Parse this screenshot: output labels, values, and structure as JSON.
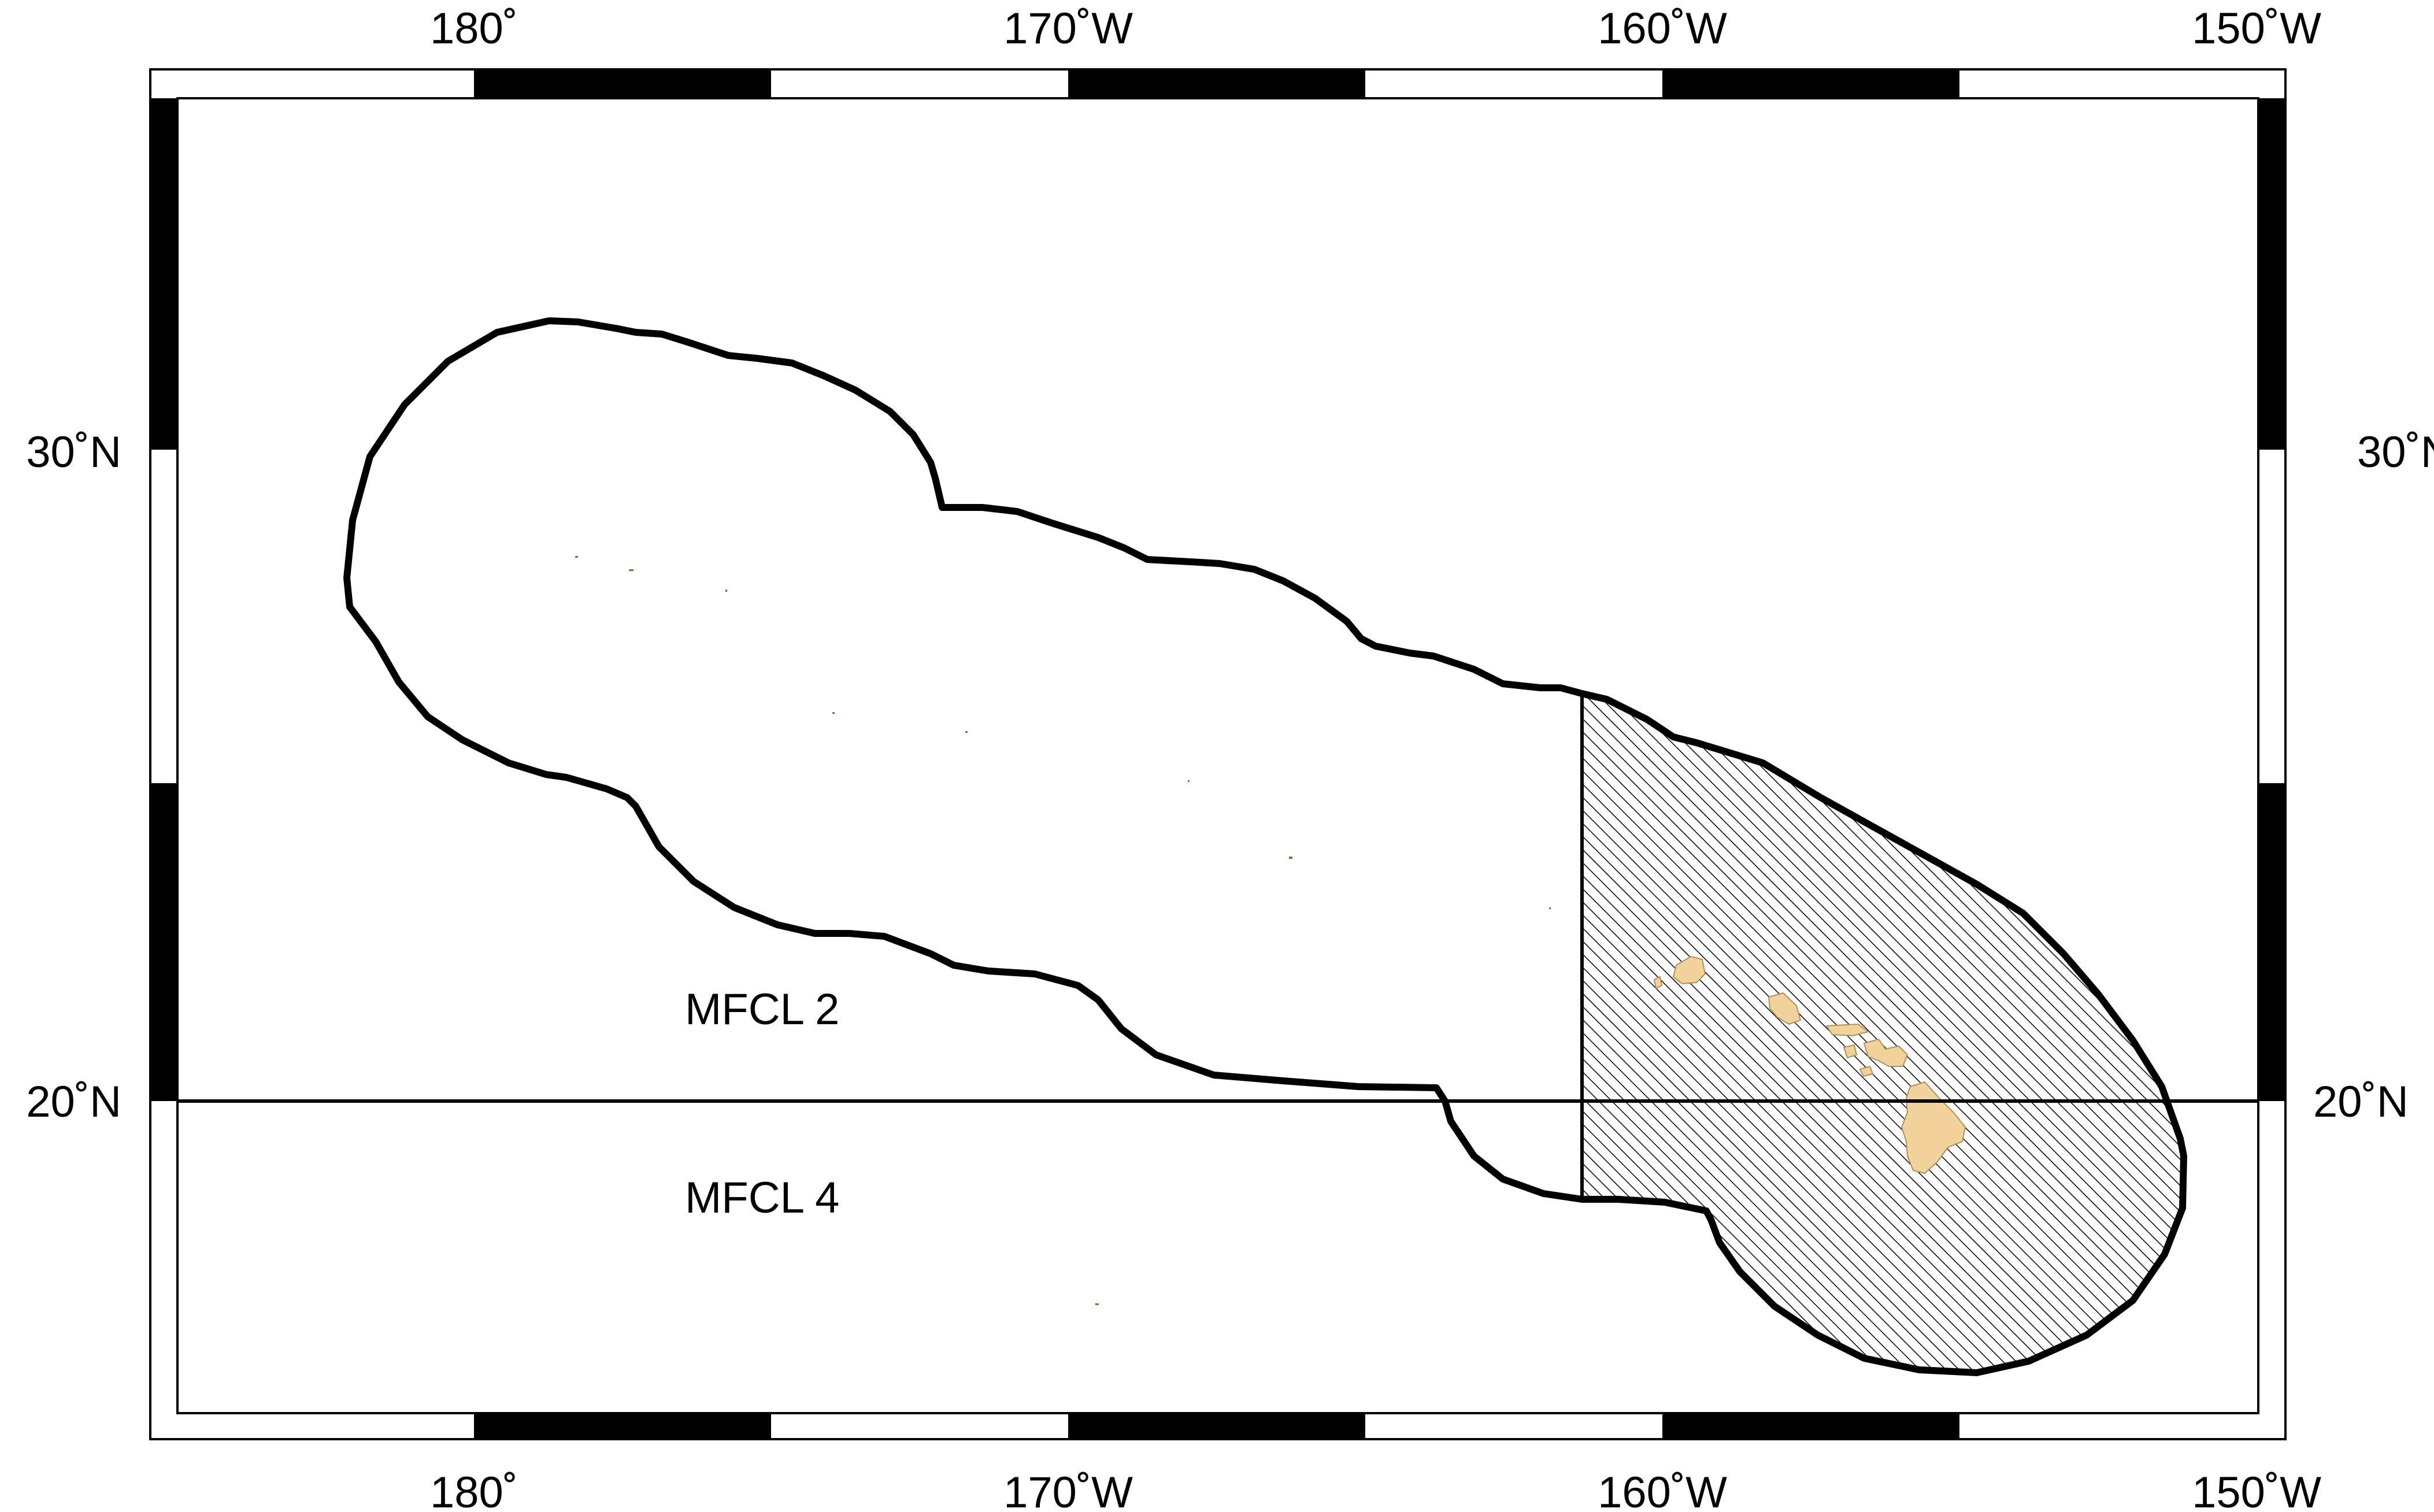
{
  "map": {
    "projection": "mercator",
    "extent": {
      "lon_min": 175.5,
      "lon_max": 210.5,
      "lat_min": 15,
      "lat_max": 35
    },
    "lon_ticks": [
      {
        "lon": 180,
        "label": "180˚"
      },
      {
        "lon": 190,
        "label": "170˚W"
      },
      {
        "lon": 200,
        "label": "160˚W"
      },
      {
        "lon": 210,
        "label": "150˚W"
      }
    ],
    "lat_ticks": [
      {
        "lat": 30,
        "label": "30˚N"
      },
      {
        "lat": 20,
        "label": "20˚N"
      }
    ],
    "boundary_line_lat": 20,
    "region_labels": [
      {
        "text": "MFCL 2",
        "lon": 180.6,
        "lat": 21.5
      },
      {
        "text": "MFCL 4",
        "lon": 180.6,
        "lat": 18.6
      }
    ],
    "colors": {
      "frame": "#000000",
      "land": "#f1d39b",
      "hatch": "#000000",
      "background": "#ffffff"
    }
  }
}
